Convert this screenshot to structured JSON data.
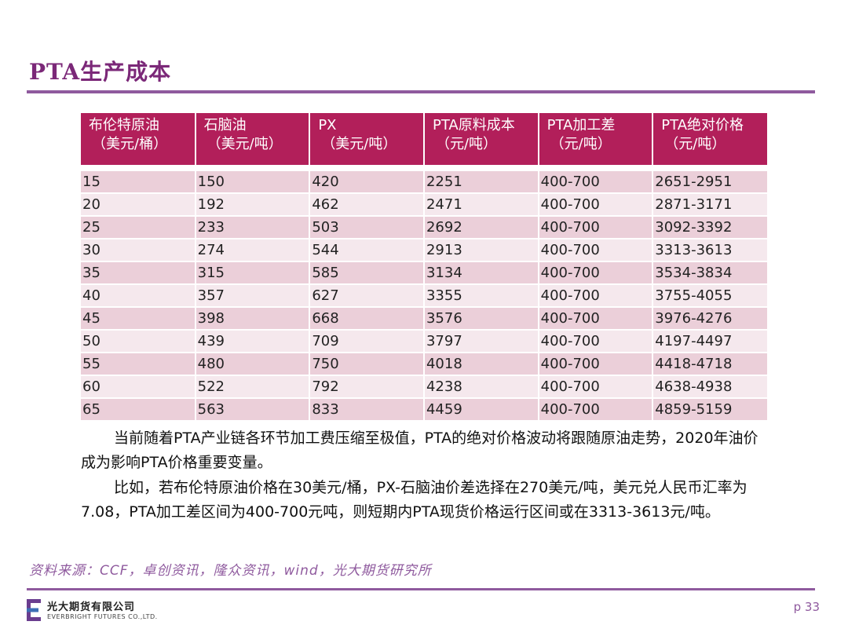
{
  "title": "PTA生产成本",
  "table": {
    "headers": [
      {
        "line1": "布伦特原油",
        "line2": "（美元/桶）"
      },
      {
        "line1": "石脑油",
        "line2": "（美元/吨）"
      },
      {
        "line1": "PX",
        "line2": "（美元/吨）"
      },
      {
        "line1": "PTA原料成本",
        "line2": "（元/吨）"
      },
      {
        "line1": "PTA加工差",
        "line2": "（元/吨）"
      },
      {
        "line1": "PTA绝对价格",
        "line2": "（元/吨）"
      }
    ],
    "rows": [
      [
        "15",
        "150",
        "420",
        "2251",
        "400-700",
        "2651-2951"
      ],
      [
        "20",
        "192",
        "462",
        "2471",
        "400-700",
        "2871-3171"
      ],
      [
        "25",
        "233",
        "503",
        "2692",
        "400-700",
        "3092-3392"
      ],
      [
        "30",
        "274",
        "544",
        "2913",
        "400-700",
        "3313-3613"
      ],
      [
        "35",
        "315",
        "585",
        "3134",
        "400-700",
        "3534-3834"
      ],
      [
        "40",
        "357",
        "627",
        "3355",
        "400-700",
        "3755-4055"
      ],
      [
        "45",
        "398",
        "668",
        "3576",
        "400-700",
        "3976-4276"
      ],
      [
        "50",
        "439",
        "709",
        "3797",
        "400-700",
        "4197-4497"
      ],
      [
        "55",
        "480",
        "750",
        "4018",
        "400-700",
        "4418-4718"
      ],
      [
        "60",
        "522",
        "792",
        "4238",
        "400-700",
        "4638-4938"
      ],
      [
        "65",
        "563",
        "833",
        "4459",
        "400-700",
        "4859-5159"
      ]
    ]
  },
  "paragraphs": [
    "当前随着PTA产业链各环节加工费压缩至极值，PTA的绝对价格波动将跟随原油走势，2020年油价成为影响PTA价格重要变量。",
    "比如，若布伦特原油价格在30美元/桶，PX-石脑油价差选择在270美元/吨，美元兑人民币汇率为7.08，PTA加工差区间为400-700元吨，则短期内PTA现货价格运行区间或在3313-3613元/吨。"
  ],
  "source": "资料来源：CCF，卓创资讯，隆众资讯，wind，光大期货研究所",
  "footer": {
    "logo_cn": "光大期货有限公司",
    "logo_en": "EVERBRIGHT FUTURES CO.,LTD.",
    "page": "p 33"
  },
  "colors": {
    "title": "#7b2878",
    "header_bg": "#b21f5a",
    "row_odd": "#ebcfd9",
    "row_even": "#f5e8ed",
    "accent": "#8f5a9e"
  }
}
